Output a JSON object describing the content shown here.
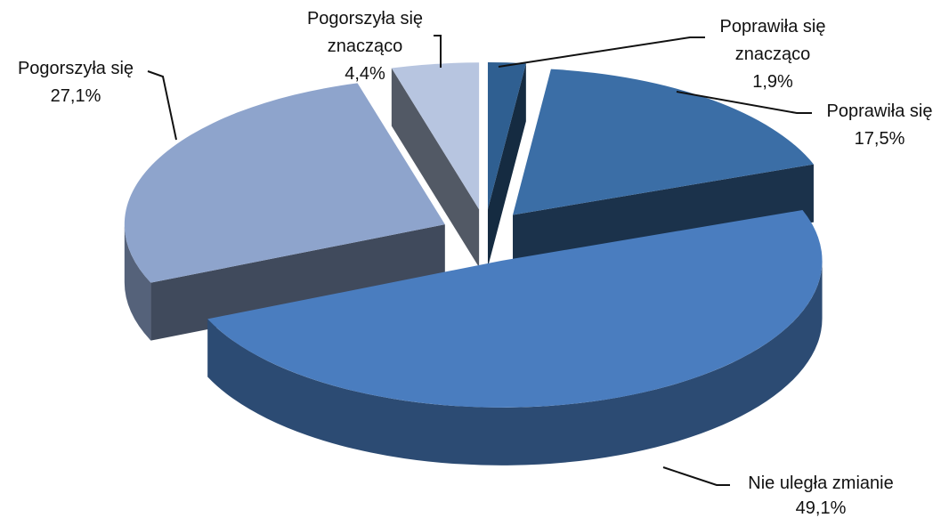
{
  "chart_data": {
    "type": "pie",
    "three_d": true,
    "exploded": true,
    "categories": [
      "Poprawiła się znacząco",
      "Poprawiła się",
      "Nie uległa zmianie",
      "Pogorszyła się",
      "Pogorszyła się znacząco"
    ],
    "values": [
      1.9,
      17.5,
      49.1,
      27.1,
      4.4
    ],
    "value_labels": [
      "1,9%",
      "17,5%",
      "49,1%",
      "27,1%",
      "4,4%"
    ],
    "colors": [
      "#2f5f91",
      "#3b6ea6",
      "#4a7dbf",
      "#8ea4cc",
      "#b7c5e0"
    ]
  }
}
